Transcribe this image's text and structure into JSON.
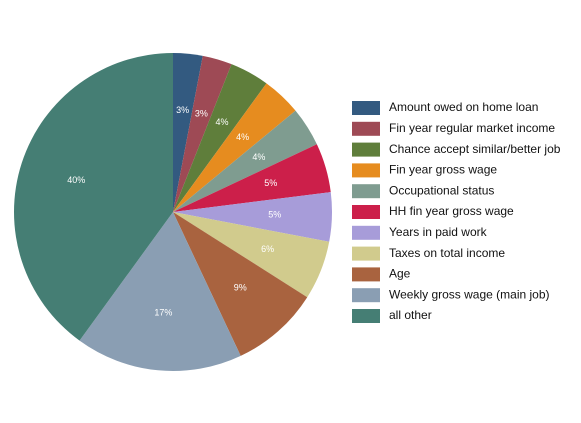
{
  "chart_data": {
    "type": "pie",
    "categories": [
      "Amount owed on home loan",
      "Fin year regular market income",
      "Chance accept similar/better job",
      "Fin year gross wage",
      "Occupational status",
      "HH fin year gross wage",
      "Years in paid work",
      "Taxes on total income",
      "Age",
      "Weekly gross wage (main job)",
      "all other"
    ],
    "values": [
      3,
      3,
      4,
      4,
      4,
      5,
      5,
      6,
      9,
      17,
      40
    ],
    "value_labels": [
      "3%",
      "3%",
      "4%",
      "4%",
      "4%",
      "5%",
      "5%",
      "6%",
      "9%",
      "17%",
      "40%"
    ],
    "colors": [
      "#335a80",
      "#9e4a55",
      "#5f7e3b",
      "#e68c1f",
      "#7f9c90",
      "#cc1f4a",
      "#a79cd9",
      "#d1cb8d",
      "#a9633f",
      "#8a9eb3",
      "#457e74"
    ],
    "legend": "right"
  }
}
